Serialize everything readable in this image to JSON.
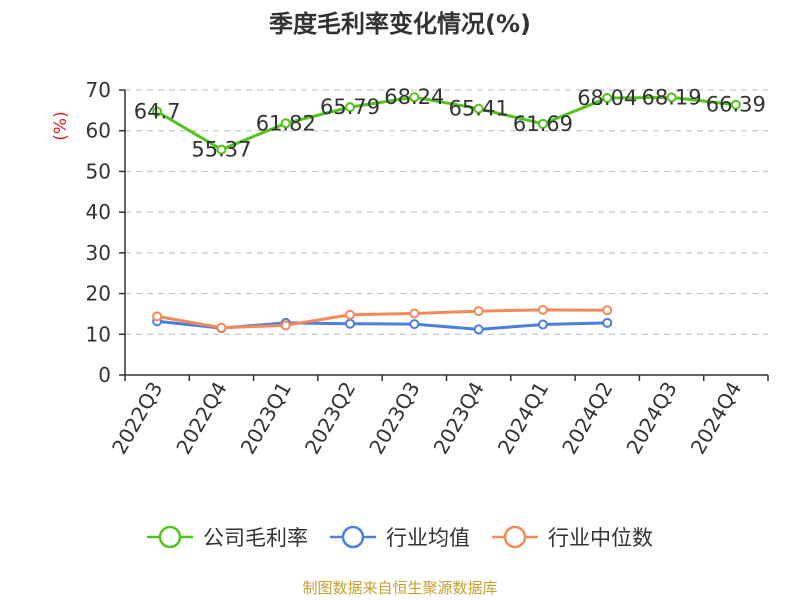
{
  "chart_data": {
    "type": "line",
    "title": "季度毛利率变化情况(%)",
    "ylabel": "(%)",
    "xlabel": "",
    "ylim": [
      0,
      70
    ],
    "yticks": [
      0,
      10,
      20,
      30,
      40,
      50,
      60,
      70
    ],
    "grid": true,
    "legend_position": "bottom",
    "categories": [
      "2022Q3",
      "2022Q4",
      "2023Q1",
      "2023Q2",
      "2023Q3",
      "2023Q4",
      "2024Q1",
      "2024Q2",
      "2024Q3",
      "2024Q4"
    ],
    "series": [
      {
        "name": "公司毛利率",
        "color": "#52c41a",
        "show_labels": true,
        "values": [
          64.7,
          55.37,
          61.82,
          65.79,
          68.24,
          65.41,
          61.69,
          68.04,
          68.19,
          66.39
        ],
        "labels": [
          "64.7",
          "55.37",
          "61.82",
          "65.79",
          "68.24",
          "65.41",
          "61.69",
          "68.04",
          "68.19",
          "66.39"
        ]
      },
      {
        "name": "行业均值",
        "color": "#4a7ee0",
        "show_labels": false,
        "values": [
          13.2,
          11.5,
          12.8,
          12.6,
          12.5,
          11.2,
          12.4,
          12.8,
          null,
          null
        ]
      },
      {
        "name": "行业中位数",
        "color": "#f48a5a",
        "show_labels": false,
        "values": [
          14.4,
          11.6,
          12.2,
          14.8,
          15.1,
          15.7,
          16.0,
          15.9,
          null,
          null
        ]
      }
    ]
  },
  "source_text": "制图数据来自恒生聚源数据库"
}
